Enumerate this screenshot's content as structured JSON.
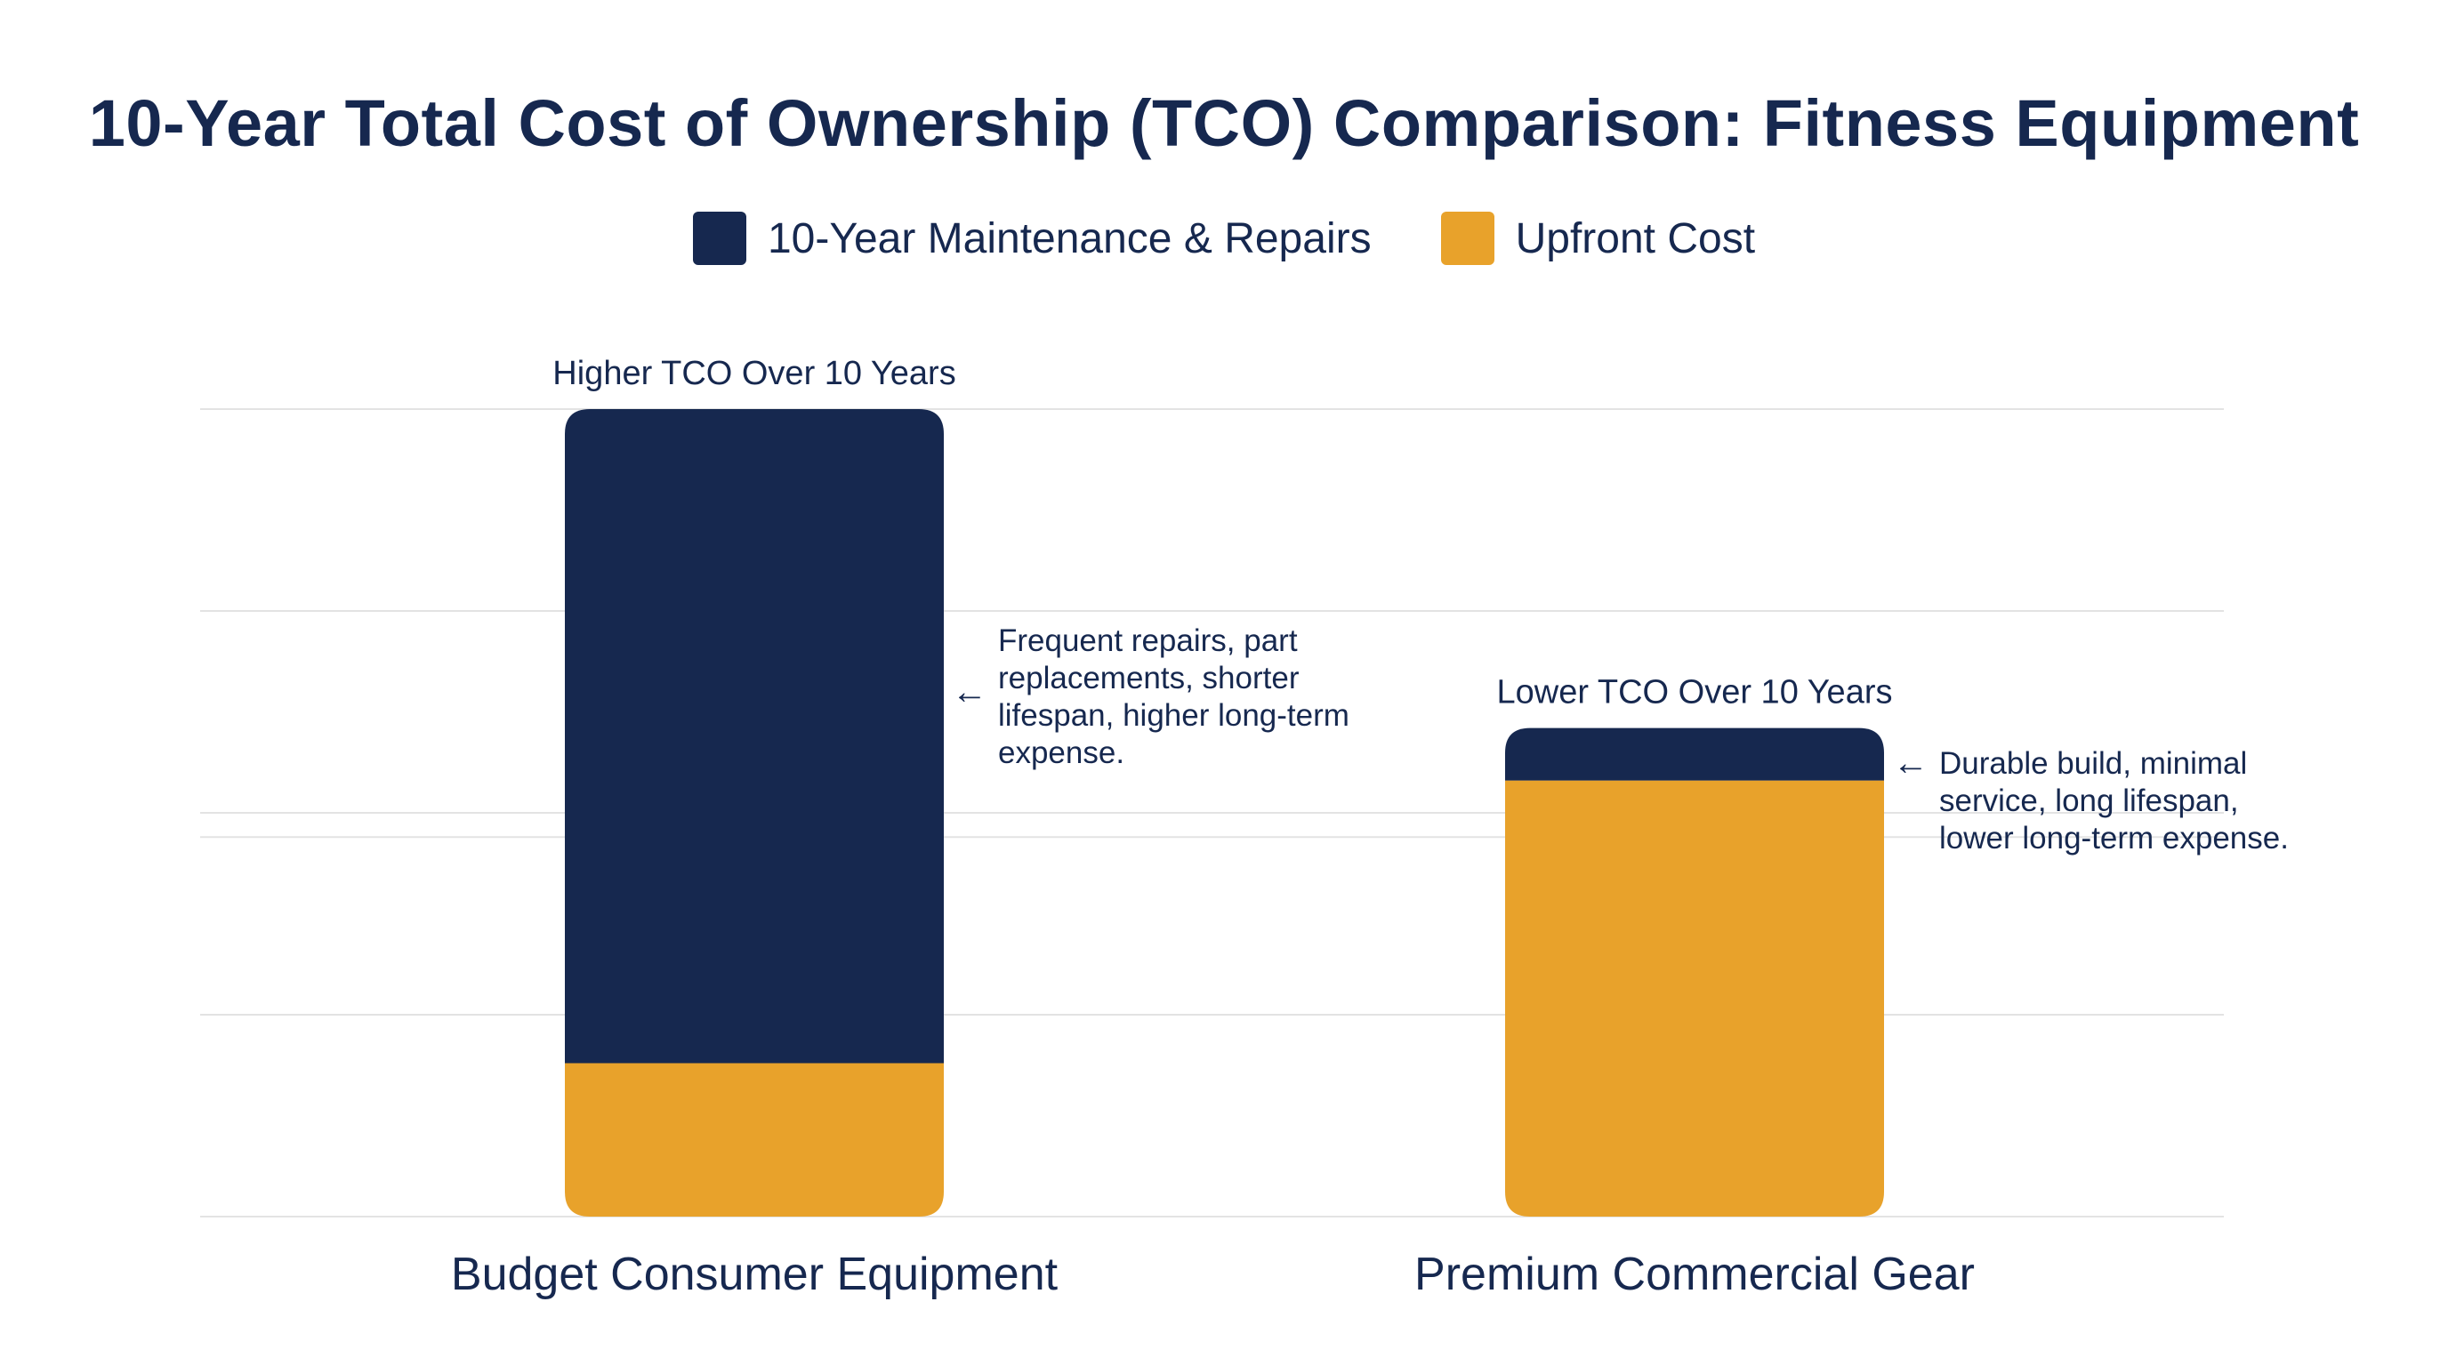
{
  "chart_data": {
    "type": "bar",
    "stacked": true,
    "title": "10-Year Total Cost of Ownership (TCO) Comparison: Fitness Equipment",
    "categories": [
      "Budget Consumer Equipment",
      "Premium Commercial Gear"
    ],
    "series": [
      {
        "name": "Upfront Cost",
        "color": "#e8a22b",
        "values": [
          19,
          54
        ]
      },
      {
        "name": "10-Year Maintenance & Repairs",
        "color": "#16284f",
        "values": [
          81,
          6.5
        ]
      }
    ],
    "legend_order": [
      "10-Year Maintenance & Repairs",
      "Upfront Cost"
    ],
    "legend_placement": "top-center",
    "bar_labels": [
      "Higher TCO Over 10 Years",
      "Lower TCO Over 10 Years"
    ],
    "annotations": [
      {
        "category": "Budget Consumer Equipment",
        "text_lines": [
          "Frequent repairs, part",
          "replacements, shorter",
          "lifespan, higher long-term",
          "expense."
        ]
      },
      {
        "category": "Premium Commercial Gear",
        "text_lines": [
          "Durable build, minimal",
          "service, long lifespan,",
          "lower long-term expense."
        ]
      }
    ],
    "arrow_glyph": "←",
    "xlabel": "",
    "ylabel": "",
    "ylim": [
      0,
      100
    ],
    "grid": true,
    "y_ticks_shown": false
  },
  "colors": {
    "navy": "#16284f",
    "orange": "#e8a22b",
    "grid": "#e3e3e3"
  }
}
